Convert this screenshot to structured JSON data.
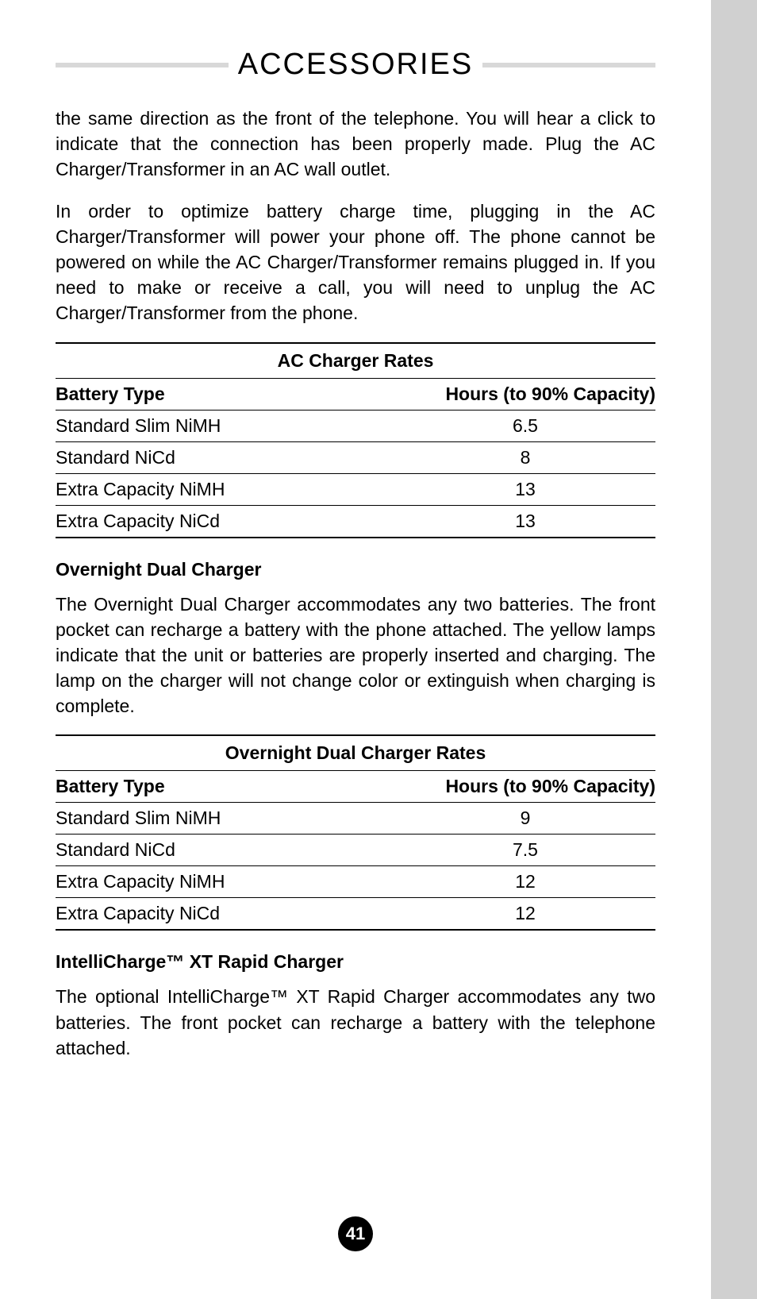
{
  "title": "ACCESSORIES",
  "paragraph1": "the same direction as the front of the telephone. You will hear a click to indicate that the connection has been properly made. Plug the AC Charger/Transformer in an AC wall outlet.",
  "paragraph2": "In order to optimize battery charge time, plugging in the AC Charger/Transformer will power your phone off. The phone cannot be powered on while the AC Charger/Transformer remains plugged in. If you need to make or receive a call, you will need to unplug the AC Charger/Transformer from the phone.",
  "table1": {
    "title": "AC Charger Rates",
    "headerLeft": "Battery Type",
    "headerRight": "Hours (to 90% Capacity)",
    "rows": [
      {
        "type": "Standard Slim NiMH",
        "hours": "6.5"
      },
      {
        "type": "Standard NiCd",
        "hours": "8"
      },
      {
        "type": "Extra Capacity NiMH",
        "hours": "13"
      },
      {
        "type": "Extra Capacity NiCd",
        "hours": "13"
      }
    ]
  },
  "heading1": "Overnight Dual Charger",
  "paragraph3": "The Overnight Dual Charger accommodates any two batteries. The front pocket can recharge a battery with the phone attached. The yellow lamps indicate that the unit or batteries are properly inserted and charging. The lamp on the charger will not change color or extinguish when charging is complete.",
  "table2": {
    "title": "Overnight Dual Charger Rates",
    "headerLeft": "Battery Type",
    "headerRight": "Hours (to 90% Capacity)",
    "rows": [
      {
        "type": "Standard Slim NiMH",
        "hours": "9"
      },
      {
        "type": "Standard NiCd",
        "hours": "7.5"
      },
      {
        "type": "Extra Capacity NiMH",
        "hours": "12"
      },
      {
        "type": "Extra Capacity NiCd",
        "hours": "12"
      }
    ]
  },
  "heading2": "IntelliCharge™ XT Rapid Charger",
  "paragraph4": "The optional IntelliCharge™ XT Rapid Charger accommodates any two batteries. The front pocket can recharge a battery with the tele­phone attached.",
  "pageNumber": "41"
}
